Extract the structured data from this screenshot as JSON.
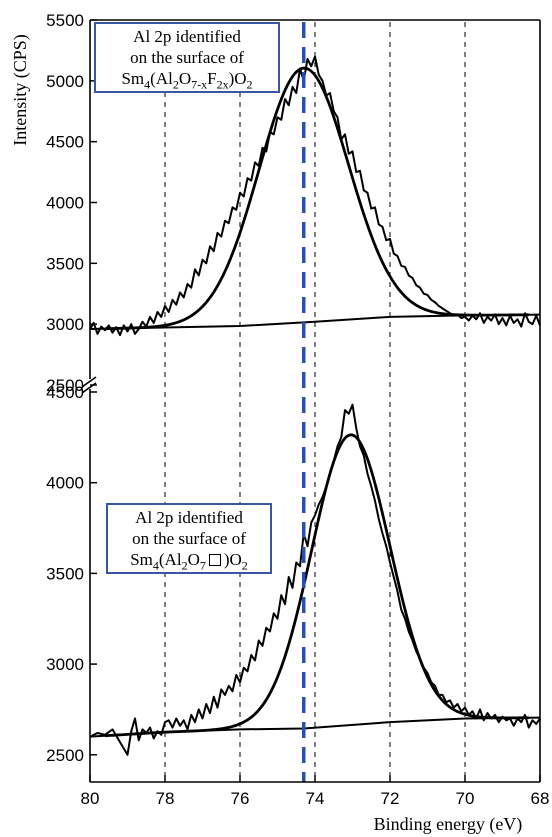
{
  "chart_data": {
    "type": "line",
    "xlabel": "Binding energy (eV)",
    "ylabel": "Intensity (CPS)",
    "x_range": [
      80,
      68
    ],
    "x_reversed": true,
    "x_ticks": [
      "80",
      "78",
      "76",
      "74",
      "72",
      "70",
      "68"
    ],
    "dashed_black_lines_x": [
      78,
      76,
      74,
      72,
      70
    ],
    "dashed_blue_line_x": 74.3,
    "axis_break": true,
    "colors": {
      "blue": "#2e4fa3",
      "black": "#000000"
    },
    "panels": [
      {
        "name": "top",
        "ylim": [
          2500,
          5500
        ],
        "y_ticks": [
          "2500",
          "3000",
          "3500",
          "4000",
          "4500",
          "5000",
          "5500"
        ],
        "annotation": {
          "line1": "Al 2p identified",
          "line2": "on the surface of",
          "formula": [
            "Sm",
            "4",
            "(Al",
            "2",
            "O",
            "7-x",
            "F",
            "2x",
            ")O",
            "2"
          ]
        },
        "fit_peak": {
          "center": 74.3,
          "amplitude": 2090,
          "sigma": 1.2
        },
        "background": [
          [
            80,
            2960
          ],
          [
            76,
            2985
          ],
          [
            74,
            3020
          ],
          [
            72,
            3060
          ],
          [
            70,
            3072
          ],
          [
            68,
            3078
          ]
        ],
        "raw": [
          [
            80,
            2960
          ],
          [
            79.9,
            3010
          ],
          [
            79.8,
            2920
          ],
          [
            79.7,
            2980
          ],
          [
            79.6,
            2950
          ],
          [
            79.5,
            2990
          ],
          [
            79.4,
            2930
          ],
          [
            79.3,
            2975
          ],
          [
            79.2,
            2910
          ],
          [
            79.1,
            2990
          ],
          [
            79.0,
            2940
          ],
          [
            78.9,
            3000
          ],
          [
            78.8,
            2920
          ],
          [
            78.7,
            2960
          ],
          [
            78.6,
            3020
          ],
          [
            78.5,
            2980
          ],
          [
            78.4,
            3060
          ],
          [
            78.3,
            3010
          ],
          [
            78.2,
            3100
          ],
          [
            78.1,
            3060
          ],
          [
            78.0,
            3150
          ],
          [
            77.9,
            3100
          ],
          [
            77.8,
            3200
          ],
          [
            77.7,
            3160
          ],
          [
            77.6,
            3260
          ],
          [
            77.5,
            3220
          ],
          [
            77.4,
            3330
          ],
          [
            77.3,
            3300
          ],
          [
            77.2,
            3450
          ],
          [
            77.1,
            3400
          ],
          [
            77.0,
            3530
          ],
          [
            76.9,
            3500
          ],
          [
            76.8,
            3640
          ],
          [
            76.7,
            3600
          ],
          [
            76.6,
            3750
          ],
          [
            76.5,
            3720
          ],
          [
            76.4,
            3850
          ],
          [
            76.3,
            3830
          ],
          [
            76.2,
            3960
          ],
          [
            76.1,
            3940
          ],
          [
            76.0,
            4080
          ],
          [
            75.9,
            4050
          ],
          [
            75.8,
            4200
          ],
          [
            75.7,
            4180
          ],
          [
            75.6,
            4330
          ],
          [
            75.5,
            4300
          ],
          [
            75.4,
            4450
          ],
          [
            75.3,
            4420
          ],
          [
            75.2,
            4580
          ],
          [
            75.1,
            4560
          ],
          [
            75.0,
            4700
          ],
          [
            74.9,
            4680
          ],
          [
            74.8,
            4850
          ],
          [
            74.7,
            4800
          ],
          [
            74.6,
            4950
          ],
          [
            74.5,
            4900
          ],
          [
            74.4,
            5100
          ],
          [
            74.3,
            5000
          ],
          [
            74.2,
            5180
          ],
          [
            74.1,
            5120
          ],
          [
            74.0,
            5200
          ],
          [
            73.9,
            5050
          ],
          [
            73.8,
            5000
          ],
          [
            73.7,
            4880
          ],
          [
            73.6,
            4900
          ],
          [
            73.5,
            4750
          ],
          [
            73.4,
            4700
          ],
          [
            73.3,
            4520
          ],
          [
            73.2,
            4560
          ],
          [
            73.1,
            4400
          ],
          [
            73.0,
            4420
          ],
          [
            72.9,
            4250
          ],
          [
            72.8,
            4260
          ],
          [
            72.7,
            4100
          ],
          [
            72.6,
            4080
          ],
          [
            72.5,
            3950
          ],
          [
            72.4,
            3960
          ],
          [
            72.3,
            3820
          ],
          [
            72.2,
            3800
          ],
          [
            72.1,
            3690
          ],
          [
            72.0,
            3700
          ],
          [
            71.9,
            3580
          ],
          [
            71.8,
            3560
          ],
          [
            71.7,
            3480
          ],
          [
            71.6,
            3470
          ],
          [
            71.5,
            3400
          ],
          [
            71.4,
            3380
          ],
          [
            71.3,
            3320
          ],
          [
            71.2,
            3300
          ],
          [
            71.1,
            3250
          ],
          [
            71.0,
            3240
          ],
          [
            70.9,
            3200
          ],
          [
            70.8,
            3180
          ],
          [
            70.7,
            3150
          ],
          [
            70.6,
            3130
          ],
          [
            70.5,
            3110
          ],
          [
            70.4,
            3090
          ],
          [
            70.3,
            3070
          ],
          [
            70.2,
            3080
          ],
          [
            70.1,
            3050
          ],
          [
            70.0,
            3060
          ],
          [
            69.9,
            3030
          ],
          [
            69.8,
            3070
          ],
          [
            69.7,
            3040
          ],
          [
            69.6,
            3090
          ],
          [
            69.5,
            3010
          ],
          [
            69.4,
            3060
          ],
          [
            69.3,
            3030
          ],
          [
            69.2,
            3080
          ],
          [
            69.1,
            3000
          ],
          [
            69.0,
            3050
          ],
          [
            68.9,
            2990
          ],
          [
            68.8,
            3070
          ],
          [
            68.7,
            3010
          ],
          [
            68.6,
            3040
          ],
          [
            68.5,
            2980
          ],
          [
            68.4,
            3090
          ],
          [
            68.3,
            3020
          ],
          [
            68.2,
            3000
          ],
          [
            68.1,
            3070
          ],
          [
            68.0,
            2990
          ]
        ]
      },
      {
        "name": "bottom",
        "ylim": [
          2350,
          4500
        ],
        "y_ticks": [
          "2500",
          "3000",
          "3500",
          "4000",
          "4500"
        ],
        "annotation": {
          "line1": "Al 2p identified",
          "line2": "on the surface of",
          "formula": [
            "Sm",
            "4",
            "(Al",
            "2",
            "O",
            "7",
            "",
            "",
            ")O",
            "2"
          ],
          "vacancy_symbol": true
        },
        "fit_peak": {
          "center": 73.05,
          "amplitude": 1600,
          "sigma": 1.05
        },
        "background": [
          [
            80,
            2600
          ],
          [
            78,
            2625
          ],
          [
            76,
            2640
          ],
          [
            74.3,
            2645
          ],
          [
            72,
            2680
          ],
          [
            70,
            2700
          ],
          [
            68,
            2705
          ]
        ],
        "raw": [
          [
            80,
            2600
          ],
          [
            79.8,
            2620
          ],
          [
            79.6,
            2610
          ],
          [
            79.4,
            2640
          ],
          [
            79.2,
            2570
          ],
          [
            79.0,
            2500
          ],
          [
            78.9,
            2630
          ],
          [
            78.8,
            2700
          ],
          [
            78.7,
            2580
          ],
          [
            78.6,
            2640
          ],
          [
            78.5,
            2620
          ],
          [
            78.4,
            2650
          ],
          [
            78.3,
            2590
          ],
          [
            78.2,
            2630
          ],
          [
            78.1,
            2610
          ],
          [
            78.0,
            2680
          ],
          [
            77.9,
            2690
          ],
          [
            77.8,
            2650
          ],
          [
            77.7,
            2700
          ],
          [
            77.6,
            2660
          ],
          [
            77.5,
            2690
          ],
          [
            77.4,
            2640
          ],
          [
            77.3,
            2720
          ],
          [
            77.2,
            2680
          ],
          [
            77.1,
            2750
          ],
          [
            77.0,
            2700
          ],
          [
            76.9,
            2780
          ],
          [
            76.8,
            2730
          ],
          [
            76.7,
            2820
          ],
          [
            76.6,
            2760
          ],
          [
            76.5,
            2860
          ],
          [
            76.4,
            2830
          ],
          [
            76.3,
            2880
          ],
          [
            76.2,
            2850
          ],
          [
            76.1,
            2940
          ],
          [
            76.0,
            2900
          ],
          [
            75.9,
            2980
          ],
          [
            75.8,
            2960
          ],
          [
            75.7,
            3050
          ],
          [
            75.6,
            3020
          ],
          [
            75.5,
            3130
          ],
          [
            75.4,
            3100
          ],
          [
            75.3,
            3200
          ],
          [
            75.2,
            3180
          ],
          [
            75.1,
            3280
          ],
          [
            75.0,
            3250
          ],
          [
            74.9,
            3380
          ],
          [
            74.8,
            3330
          ],
          [
            74.7,
            3480
          ],
          [
            74.6,
            3420
          ],
          [
            74.5,
            3560
          ],
          [
            74.4,
            3540
          ],
          [
            74.3,
            3720
          ],
          [
            74.2,
            3650
          ],
          [
            74.1,
            3780
          ],
          [
            74.0,
            3820
          ],
          [
            73.9,
            3880
          ],
          [
            73.8,
            3920
          ],
          [
            73.7,
            3980
          ],
          [
            73.6,
            4050
          ],
          [
            73.5,
            4120
          ],
          [
            73.4,
            4200
          ],
          [
            73.3,
            4250
          ],
          [
            73.2,
            4400
          ],
          [
            73.1,
            4380
          ],
          [
            73.0,
            4430
          ],
          [
            72.9,
            4300
          ],
          [
            72.8,
            4200
          ],
          [
            72.7,
            4150
          ],
          [
            72.6,
            4050
          ],
          [
            72.5,
            3980
          ],
          [
            72.4,
            3900
          ],
          [
            72.3,
            3800
          ],
          [
            72.2,
            3720
          ],
          [
            72.1,
            3650
          ],
          [
            72.0,
            3560
          ],
          [
            71.9,
            3480
          ],
          [
            71.8,
            3400
          ],
          [
            71.7,
            3300
          ],
          [
            71.6,
            3250
          ],
          [
            71.5,
            3180
          ],
          [
            71.4,
            3130
          ],
          [
            71.3,
            3070
          ],
          [
            71.2,
            3030
          ],
          [
            71.1,
            2980
          ],
          [
            71.0,
            2950
          ],
          [
            70.9,
            2900
          ],
          [
            70.8,
            2880
          ],
          [
            70.7,
            2830
          ],
          [
            70.6,
            2830
          ],
          [
            70.5,
            2790
          ],
          [
            70.4,
            2800
          ],
          [
            70.3,
            2760
          ],
          [
            70.2,
            2780
          ],
          [
            70.1,
            2740
          ],
          [
            70.0,
            2760
          ],
          [
            69.9,
            2720
          ],
          [
            69.8,
            2740
          ],
          [
            69.7,
            2700
          ],
          [
            69.6,
            2750
          ],
          [
            69.5,
            2690
          ],
          [
            69.4,
            2730
          ],
          [
            69.3,
            2700
          ],
          [
            69.2,
            2720
          ],
          [
            69.1,
            2680
          ],
          [
            69.0,
            2710
          ],
          [
            68.9,
            2690
          ],
          [
            68.8,
            2700
          ],
          [
            68.7,
            2660
          ],
          [
            68.6,
            2700
          ],
          [
            68.5,
            2680
          ],
          [
            68.4,
            2720
          ],
          [
            68.3,
            2650
          ],
          [
            68.2,
            2690
          ],
          [
            68.1,
            2670
          ],
          [
            68.0,
            2700
          ]
        ]
      }
    ]
  }
}
